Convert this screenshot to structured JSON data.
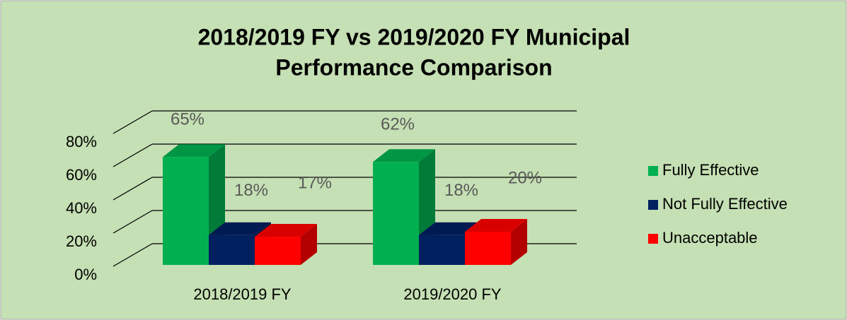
{
  "chart_data": {
    "type": "bar3d",
    "title": [
      "2018/2019 FY vs 2019/2020 FY Municipal",
      "Performance Comparison"
    ],
    "categories": [
      "2018/2019 FY",
      "2019/2020 FY"
    ],
    "series": [
      {
        "name": "Fully Effective",
        "color": "#00b050",
        "values": [
          65,
          62
        ],
        "value_labels": [
          "65%",
          "62%"
        ]
      },
      {
        "name": "Not Fully Effective",
        "color": "#002060",
        "values": [
          18,
          18
        ],
        "value_labels": [
          "18%",
          "18%"
        ]
      },
      {
        "name": "Unacceptable",
        "color": "#ff0000",
        "values": [
          17,
          20
        ],
        "value_labels": [
          "17%",
          "20%"
        ]
      }
    ],
    "ylim": [
      0,
      80
    ],
    "yticks": [
      {
        "value": 0,
        "label": "0%"
      },
      {
        "value": 20,
        "label": "20%"
      },
      {
        "value": 40,
        "label": "40%"
      },
      {
        "value": 60,
        "label": "60%"
      },
      {
        "value": 80,
        "label": "80%"
      }
    ],
    "grid": true,
    "legend": "right"
  }
}
